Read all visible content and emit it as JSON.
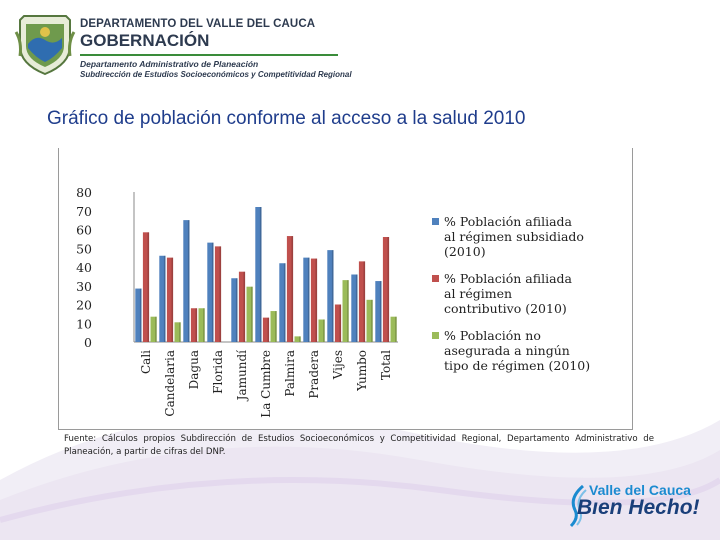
{
  "header": {
    "org_line1": "DEPARTAMENTO DEL VALLE DEL CAUCA",
    "org_line2": "GOBERNACIÓN",
    "org_line3": "Departamento Administrativo de Planeación",
    "org_line4": "Subdirección de Estudios Socioeconómicos y Competitividad Regional",
    "crest_icon": "coat-of-arms-icon"
  },
  "slide_title": "Gráfico de población conforme al acceso a la salud 2010",
  "source_note": "Fuente: Cálculos propios Subdirección de Estudios Socioeconómicos y Competitividad Regional, Departamento Administrativo de Planeación, a partir de cifras del DNP.",
  "brand": {
    "line1": "Valle del Cauca",
    "line2": "Bıen Hecho!",
    "icon": "brand-swoosh-icon"
  },
  "colors": {
    "title": "#1f3d8c",
    "series_subsidiado": "#4f81bd",
    "series_contributivo": "#c0504d",
    "series_no_asegurada": "#9bbb59"
  },
  "chart_data": {
    "type": "bar",
    "title": "",
    "xlabel": "",
    "ylabel": "",
    "ylim": [
      0,
      80
    ],
    "yticks": [
      0,
      10,
      20,
      30,
      40,
      50,
      60,
      70,
      80
    ],
    "grid": false,
    "legend_position": "right",
    "categories": [
      "Cali",
      "Candelaria",
      "Dagua",
      "Florida",
      "Jamundí",
      "La Cumbre",
      "Palmira",
      "Pradera",
      "Vijes",
      "Yumbo",
      "Total"
    ],
    "series": [
      {
        "name": "% Población afiliada al régimen subsidiado (2010)",
        "color": "#4f81bd",
        "values": [
          28.5,
          46,
          65,
          53,
          34,
          72,
          42,
          45,
          49,
          36,
          32.5
        ]
      },
      {
        "name": "% Población afiliada al régimen contributivo (2010)",
        "color": "#c0504d",
        "values": [
          58.5,
          45,
          18,
          51,
          37.5,
          13,
          56.5,
          44.5,
          20,
          43,
          56
        ]
      },
      {
        "name": "% Población no asegurada a ningún tipo de régimen (2010)",
        "color": "#9bbb59",
        "values": [
          13.5,
          10.5,
          18,
          0,
          29.5,
          16.5,
          3,
          12,
          33,
          22.5,
          13.5
        ]
      }
    ]
  }
}
